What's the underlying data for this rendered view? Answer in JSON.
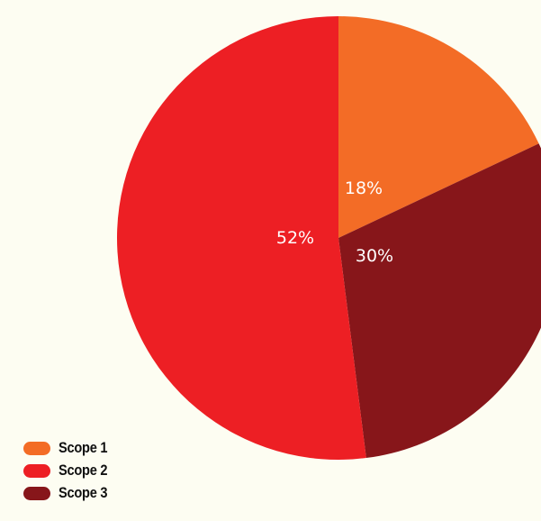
{
  "chart_data": {
    "type": "pie",
    "title": "",
    "slices": [
      {
        "name": "Scope 1",
        "value": 18,
        "label": "18%",
        "color": "#f36c26"
      },
      {
        "name": "Scope 3",
        "value": 30,
        "label": "30%",
        "color": "#87161a"
      },
      {
        "name": "Scope 2",
        "value": 52,
        "label": "52%",
        "color": "#ed1f24"
      }
    ],
    "start_angle_deg": 0,
    "direction": "clockwise",
    "legend": {
      "placement": "bottom-left",
      "entries": [
        {
          "label": "Scope 1",
          "color": "#f36c26"
        },
        {
          "label": "Scope 2",
          "color": "#ed1f24"
        },
        {
          "label": "Scope 3",
          "color": "#87161a"
        }
      ]
    }
  }
}
